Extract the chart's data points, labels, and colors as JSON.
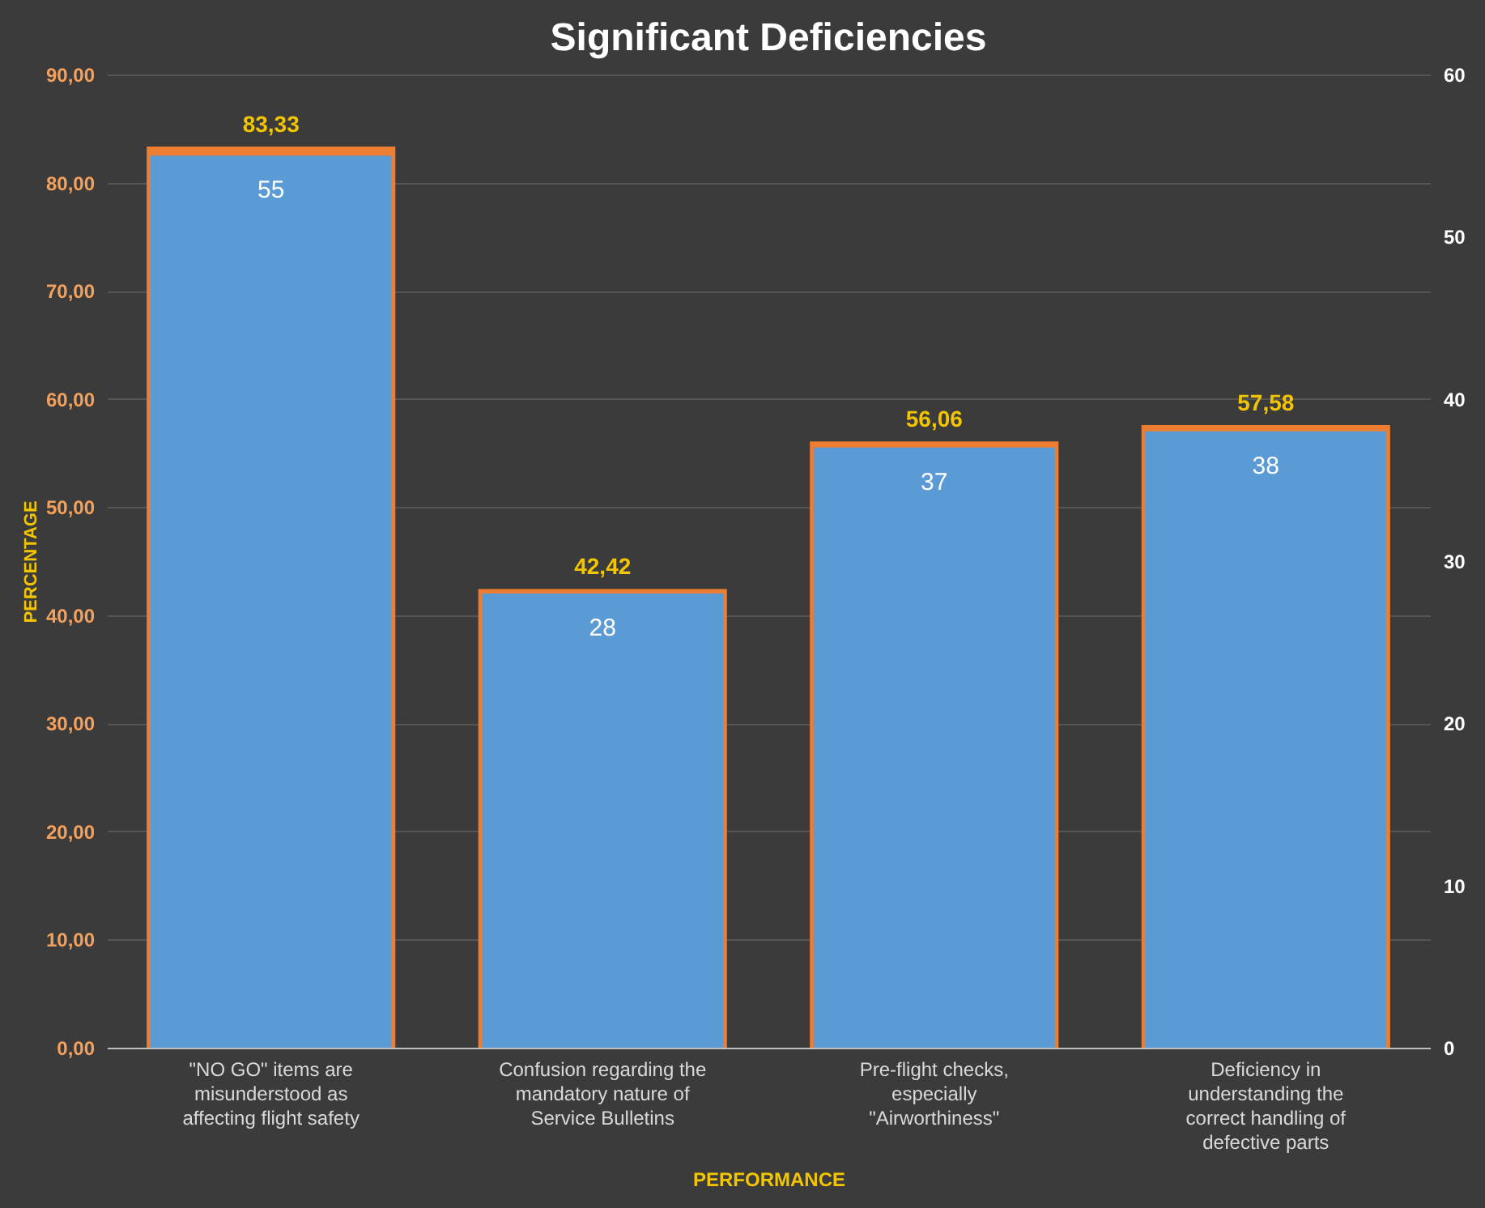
{
  "chart_data": {
    "type": "bar",
    "title": "Significant Deficiencies",
    "xlabel": "PERFORMANCE",
    "ylabel": "PERCENTAGE",
    "categories": [
      "\"NO GO\" items are misunderstood as affecting flight safety",
      "Confusion regarding the mandatory nature of Service Bulletins",
      "Pre-flight checks, especially \"Airworthiness\"",
      "Deficiency in understanding the correct handling of defective parts"
    ],
    "series": [
      {
        "color": "#ed7d31",
        "values": [
          83.33,
          42.42,
          56.06,
          57.58
        ],
        "value_labels": [
          "83,33",
          "42,42",
          "56,06",
          "57,58"
        ]
      },
      {
        "color": "#5b9bd5",
        "axis": "y2",
        "values": [
          55,
          28,
          37,
          38
        ],
        "value_labels": [
          "55",
          "28",
          "37",
          "38"
        ]
      }
    ],
    "ylim": [
      0,
      90
    ],
    "yticks": [
      {
        "value": 0,
        "label": "0,00"
      },
      {
        "value": 10,
        "label": "10,00"
      },
      {
        "value": 20,
        "label": "20,00"
      },
      {
        "value": 30,
        "label": "30,00"
      },
      {
        "value": 40,
        "label": "40,00"
      },
      {
        "value": 50,
        "label": "50,00"
      },
      {
        "value": 60,
        "label": "60,00"
      },
      {
        "value": 70,
        "label": "70,00"
      },
      {
        "value": 80,
        "label": "80,00"
      },
      {
        "value": 90,
        "label": "90,00"
      }
    ],
    "y2lim": [
      0,
      60
    ],
    "y2ticks": [
      0,
      10,
      20,
      30,
      40,
      50,
      60
    ],
    "grid": "y",
    "legend": false
  }
}
